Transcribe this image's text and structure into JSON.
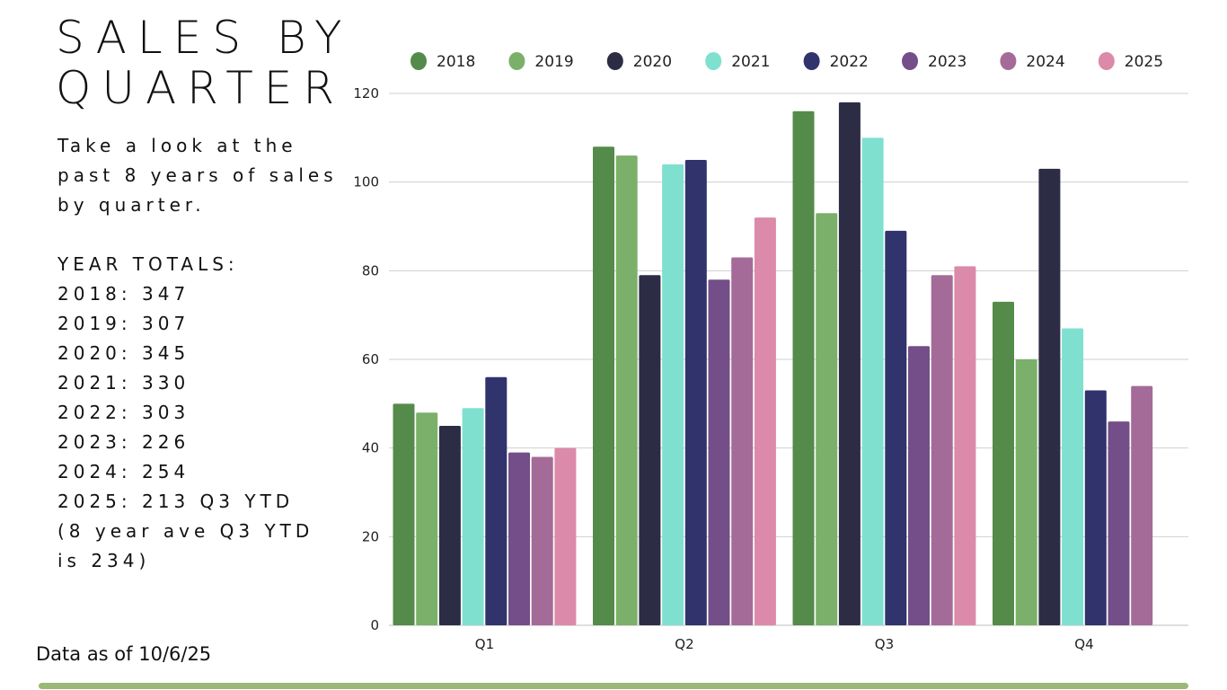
{
  "title": "SALES BY\nQUARTER",
  "description": "Take a look at the past 8 years of sales by quarter.",
  "totals_heading": "YEAR TOTALS:",
  "totals": [
    "2018: 347",
    "2019: 307",
    "2020: 345",
    "2021: 330",
    "2022: 303",
    "2023: 226",
    "2024: 254",
    "2025: 213 Q3 YTD",
    "(8 year ave Q3 YTD is 234)"
  ],
  "footer_note": "Data as of 10/6/25",
  "accent_color": "#9bb877",
  "chart_data": {
    "type": "bar",
    "title": "",
    "xlabel": "",
    "ylabel": "",
    "categories": [
      "Q1",
      "Q2",
      "Q3",
      "Q4"
    ],
    "ylim": [
      0,
      120
    ],
    "yticks": [
      0,
      20,
      40,
      60,
      80,
      100,
      120
    ],
    "grid": true,
    "legend_position": "top",
    "series": [
      {
        "name": "2018",
        "color": "#548b4a",
        "values": [
          50,
          108,
          116,
          73
        ]
      },
      {
        "name": "2019",
        "color": "#7bb06a",
        "values": [
          48,
          106,
          93,
          60
        ]
      },
      {
        "name": "2020",
        "color": "#2c2d45",
        "values": [
          45,
          79,
          118,
          103
        ]
      },
      {
        "name": "2021",
        "color": "#7fe0d0",
        "values": [
          49,
          104,
          110,
          67
        ]
      },
      {
        "name": "2022",
        "color": "#30336c",
        "values": [
          56,
          105,
          89,
          53
        ]
      },
      {
        "name": "2023",
        "color": "#744e88",
        "values": [
          39,
          78,
          63,
          46
        ]
      },
      {
        "name": "2024",
        "color": "#a56b98",
        "values": [
          38,
          83,
          79,
          54
        ]
      },
      {
        "name": "2025",
        "color": "#dc8aa9",
        "values": [
          40,
          92,
          81,
          null
        ]
      }
    ]
  }
}
